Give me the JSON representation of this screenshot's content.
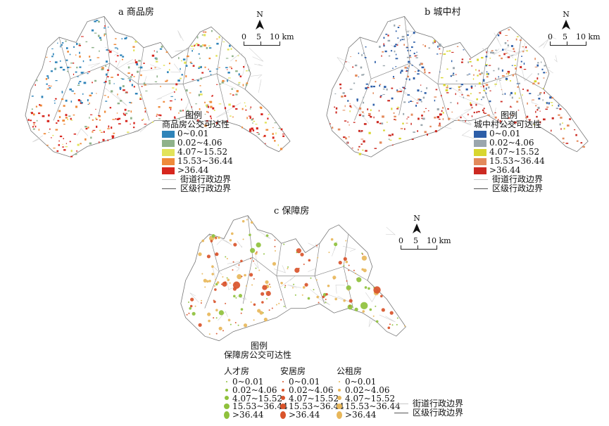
{
  "panel_a": {
    "title": "a 商品房",
    "legend_title": "图例",
    "legend_subtitle": "商品房公交可达性",
    "classes": [
      {
        "label": "0~0.01",
        "color": "#2f84b9"
      },
      {
        "label": "0.02~4.06",
        "color": "#8fb28a"
      },
      {
        "label": "4.07~15.52",
        "color": "#e2e35a"
      },
      {
        "label": "15.53~36.44",
        "color": "#ef8a3a"
      },
      {
        "label": ">36.44",
        "color": "#d7261e"
      }
    ],
    "boundary_street": "街道行政边界",
    "boundary_district": "区级行政边界"
  },
  "panel_b": {
    "title": "b 城中村",
    "legend_title": "图例",
    "legend_subtitle": "城中村公交可达性",
    "classes": [
      {
        "label": "0~0.01",
        "color": "#2c5ea8"
      },
      {
        "label": "0.02~4.06",
        "color": "#9aa6ad"
      },
      {
        "label": "4.07~15.52",
        "color": "#d8d630"
      },
      {
        "label": "15.53~36.44",
        "color": "#e38a5c"
      },
      {
        "label": ">36.44",
        "color": "#cc2a22"
      }
    ],
    "boundary_street": "街道行政边界",
    "boundary_district": "区级行政边界"
  },
  "panel_c": {
    "title": "c 保障房",
    "legend_title": "图例",
    "legend_subtitle": "保障房公交可达性",
    "groups": [
      {
        "name": "人才房",
        "color": "#8fc13c"
      },
      {
        "name": "安居房",
        "color": "#d9542b"
      },
      {
        "name": "公租房",
        "color": "#e8b75a"
      }
    ],
    "class_labels": [
      "0~0.01",
      "0.02~4.06",
      "4.07~15.52",
      "15.53~36.44",
      ">36.44"
    ],
    "boundary_street": "街道行政边界",
    "boundary_district": "区级行政边界"
  },
  "scale_bar": {
    "north": "N",
    "labels": [
      "0",
      "5",
      "10 km"
    ]
  }
}
